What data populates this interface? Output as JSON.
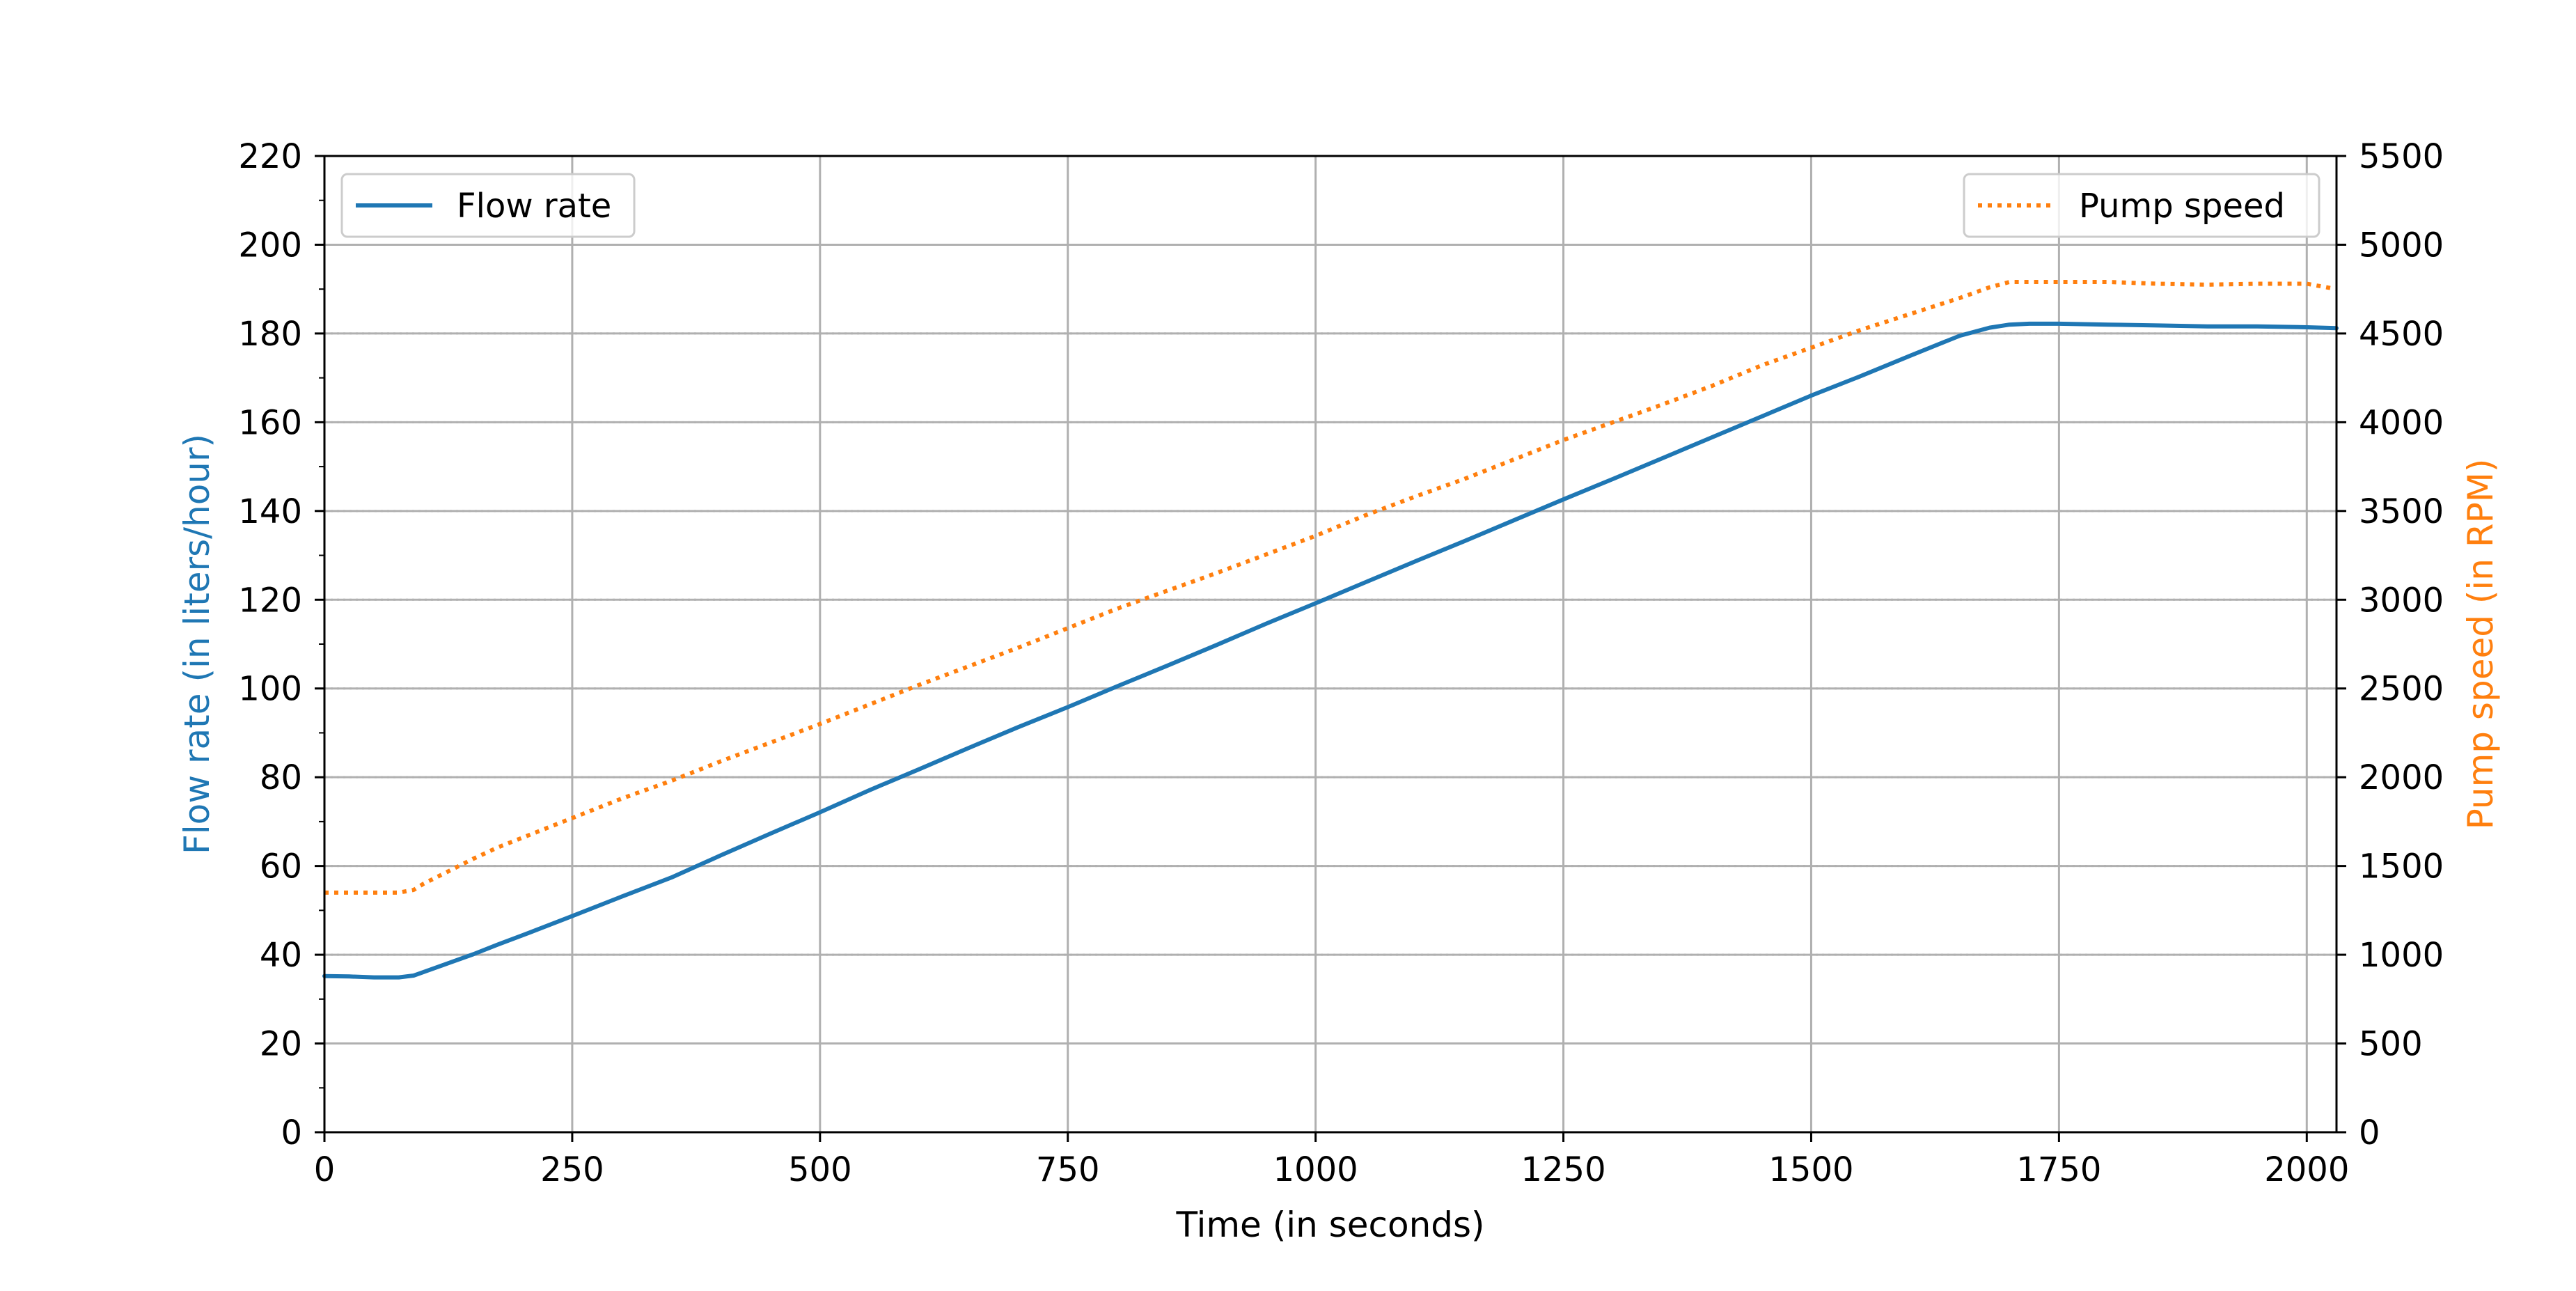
{
  "chart_data": {
    "type": "line",
    "title": "",
    "xlabel": "Time (in seconds)",
    "ylabel_left": "Flow rate (in liters/hour)",
    "ylabel_right": "Pump speed (in RPM)",
    "xlim": [
      0,
      2030
    ],
    "ylim_left": [
      0,
      220
    ],
    "ylim_right": [
      0,
      5500
    ],
    "x_ticks": [
      "0",
      "250",
      "500",
      "750",
      "1000",
      "1250",
      "1500",
      "1750",
      "2000"
    ],
    "y_left_ticks": [
      "0",
      "20",
      "40",
      "60",
      "80",
      "100",
      "120",
      "140",
      "160",
      "180",
      "200",
      "220"
    ],
    "y_right_ticks": [
      "0",
      "500",
      "1000",
      "1500",
      "2000",
      "2500",
      "3000",
      "3500",
      "4000",
      "4500",
      "5000",
      "5500"
    ],
    "grid": {
      "x_major": true,
      "y_left_major": true,
      "y_right_major": "dotted"
    },
    "legend_left": {
      "label": "Flow rate",
      "placement": "upper-left"
    },
    "legend_right": {
      "label": "Pump speed",
      "placement": "upper-right"
    },
    "colors": {
      "flow": "#1f77b4",
      "pump": "#ff7f0e",
      "grid": "#b0b0b0",
      "axis": "#000000"
    },
    "series": [
      {
        "name": "Flow rate",
        "axis": "left",
        "style": "solid",
        "x": [
          0,
          25,
          50,
          75,
          90,
          100,
          125,
          150,
          175,
          200,
          250,
          300,
          350,
          400,
          450,
          500,
          550,
          600,
          650,
          700,
          750,
          800,
          850,
          900,
          950,
          1000,
          1050,
          1100,
          1150,
          1200,
          1250,
          1300,
          1350,
          1400,
          1450,
          1500,
          1550,
          1600,
          1650,
          1680,
          1700,
          1720,
          1750,
          1800,
          1850,
          1900,
          1950,
          2000,
          2030
        ],
        "y": [
          35.2,
          35.1,
          34.9,
          34.9,
          35.3,
          36.1,
          38.1,
          40.1,
          42.3,
          44.4,
          48.7,
          53.1,
          57.4,
          62.4,
          67.3,
          72.1,
          77.1,
          81.8,
          86.6,
          91.3,
          95.8,
          100.5,
          105.1,
          109.8,
          114.6,
          119.2,
          123.9,
          128.6,
          133.2,
          137.9,
          142.6,
          147.2,
          151.9,
          156.6,
          161.3,
          166,
          170.4,
          175,
          179.5,
          181.3,
          182,
          182.2,
          182.2,
          182,
          181.8,
          181.6,
          181.6,
          181.4,
          181.2
        ]
      },
      {
        "name": "Pump speed",
        "axis": "right",
        "style": "dotted",
        "x": [
          0,
          25,
          50,
          75,
          90,
          100,
          125,
          150,
          175,
          200,
          250,
          300,
          350,
          400,
          450,
          500,
          550,
          600,
          650,
          700,
          750,
          800,
          850,
          900,
          950,
          1000,
          1050,
          1100,
          1150,
          1200,
          1250,
          1300,
          1350,
          1400,
          1450,
          1500,
          1550,
          1600,
          1650,
          1680,
          1700,
          1720,
          1750,
          1800,
          1850,
          1900,
          1950,
          2000,
          2030
        ],
        "y": [
          1350,
          1350,
          1350,
          1350,
          1365,
          1400,
          1470,
          1540,
          1605,
          1660,
          1770,
          1880,
          1980,
          2090,
          2195,
          2300,
          2410,
          2520,
          2625,
          2730,
          2840,
          2950,
          3050,
          3150,
          3255,
          3360,
          3475,
          3580,
          3680,
          3790,
          3900,
          4000,
          4100,
          4205,
          4320,
          4420,
          4520,
          4610,
          4700,
          4760,
          4790,
          4790,
          4790,
          4790,
          4780,
          4775,
          4780,
          4780,
          4750
        ]
      }
    ]
  }
}
